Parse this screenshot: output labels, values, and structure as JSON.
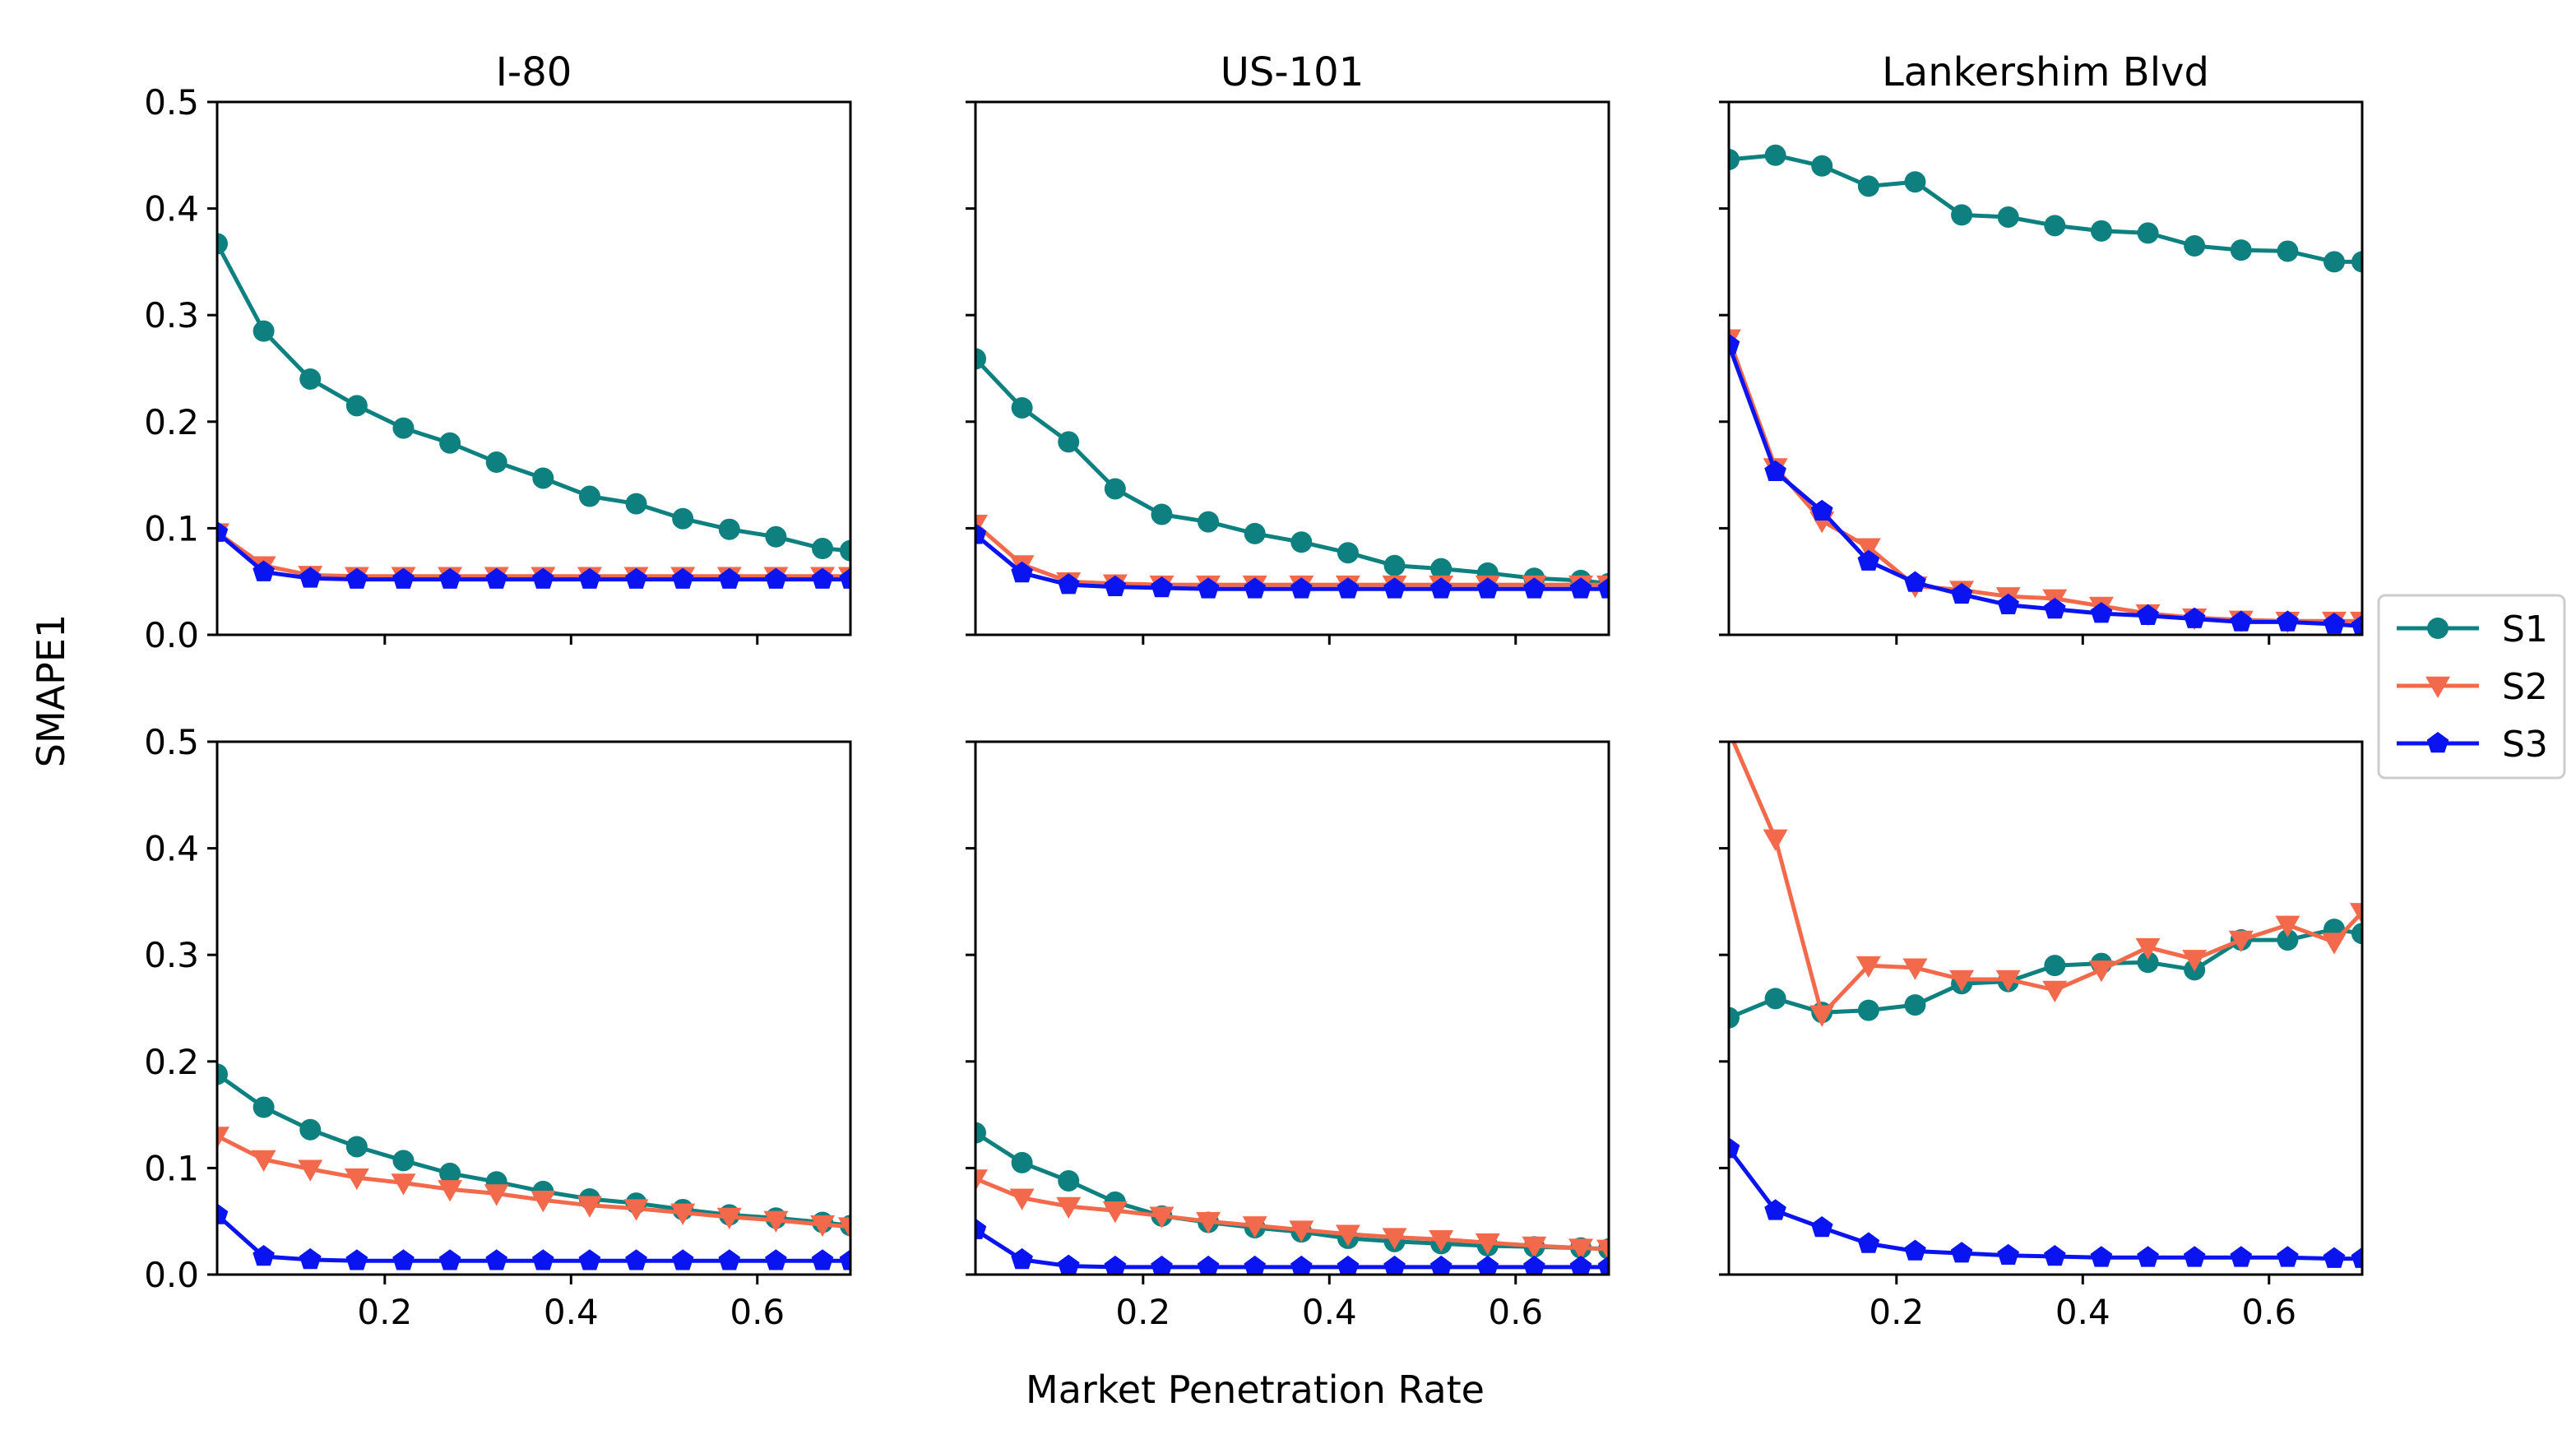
{
  "figure": {
    "ylabel": "SMAPE1",
    "xlabel": "Market Penetration Rate",
    "legend": {
      "placement": "right-center",
      "entries": [
        "S1",
        "S2",
        "S3"
      ]
    }
  },
  "colors": {
    "S1": "#0f8080",
    "S2": "#f26a4b",
    "S3": "#0a14f0"
  },
  "chart_data": [
    {
      "type": "line",
      "title": "I-80",
      "row": 0,
      "col": 0,
      "xlim": [
        0.02,
        0.7
      ],
      "ylim": [
        0,
        0.5
      ],
      "x": [
        0.02,
        0.07,
        0.12,
        0.17,
        0.22,
        0.27,
        0.32,
        0.37,
        0.42,
        0.47,
        0.52,
        0.57,
        0.62,
        0.67,
        0.7
      ],
      "series": [
        {
          "name": "S1",
          "values": [
            0.367,
            0.285,
            0.24,
            0.215,
            0.194,
            0.18,
            0.162,
            0.147,
            0.13,
            0.123,
            0.109,
            0.099,
            0.092,
            0.081,
            0.079
          ]
        },
        {
          "name": "S2",
          "values": [
            0.096,
            0.065,
            0.056,
            0.055,
            0.055,
            0.055,
            0.055,
            0.055,
            0.055,
            0.055,
            0.055,
            0.055,
            0.055,
            0.055,
            0.055
          ]
        },
        {
          "name": "S3",
          "values": [
            0.096,
            0.059,
            0.053,
            0.052,
            0.052,
            0.052,
            0.052,
            0.052,
            0.052,
            0.052,
            0.052,
            0.052,
            0.052,
            0.052,
            0.052
          ]
        }
      ]
    },
    {
      "type": "line",
      "title": "US-101",
      "row": 0,
      "col": 1,
      "xlim": [
        0.02,
        0.7
      ],
      "ylim": [
        0,
        0.5
      ],
      "x": [
        0.02,
        0.07,
        0.12,
        0.17,
        0.22,
        0.27,
        0.32,
        0.37,
        0.42,
        0.47,
        0.52,
        0.57,
        0.62,
        0.67,
        0.7
      ],
      "series": [
        {
          "name": "S1",
          "values": [
            0.259,
            0.213,
            0.181,
            0.137,
            0.113,
            0.106,
            0.095,
            0.087,
            0.077,
            0.065,
            0.062,
            0.058,
            0.053,
            0.051,
            0.048
          ]
        },
        {
          "name": "S2",
          "values": [
            0.104,
            0.066,
            0.05,
            0.048,
            0.047,
            0.047,
            0.047,
            0.047,
            0.047,
            0.047,
            0.047,
            0.047,
            0.047,
            0.047,
            0.047
          ]
        },
        {
          "name": "S3",
          "values": [
            0.094,
            0.058,
            0.047,
            0.045,
            0.044,
            0.043,
            0.043,
            0.043,
            0.043,
            0.043,
            0.043,
            0.043,
            0.043,
            0.043,
            0.043
          ]
        }
      ]
    },
    {
      "type": "line",
      "title": "Lankershim Blvd",
      "row": 0,
      "col": 2,
      "xlim": [
        0.02,
        0.7
      ],
      "ylim": [
        0,
        0.5
      ],
      "x": [
        0.02,
        0.07,
        0.12,
        0.17,
        0.22,
        0.27,
        0.32,
        0.37,
        0.42,
        0.47,
        0.52,
        0.57,
        0.62,
        0.67,
        0.7
      ],
      "series": [
        {
          "name": "S1",
          "values": [
            0.446,
            0.45,
            0.44,
            0.421,
            0.425,
            0.394,
            0.392,
            0.384,
            0.379,
            0.377,
            0.365,
            0.361,
            0.36,
            0.35,
            0.35
          ]
        },
        {
          "name": "S2",
          "values": [
            0.278,
            0.157,
            0.107,
            0.082,
            0.046,
            0.042,
            0.036,
            0.034,
            0.027,
            0.02,
            0.016,
            0.014,
            0.013,
            0.013,
            0.013
          ]
        },
        {
          "name": "S3",
          "values": [
            0.272,
            0.153,
            0.116,
            0.069,
            0.049,
            0.038,
            0.028,
            0.024,
            0.02,
            0.018,
            0.015,
            0.012,
            0.012,
            0.01,
            0.008
          ]
        }
      ]
    },
    {
      "type": "line",
      "title": "",
      "row": 1,
      "col": 0,
      "xlim": [
        0.02,
        0.7
      ],
      "ylim": [
        0,
        0.5
      ],
      "xticks": [
        "0.2",
        "0.4",
        "0.6"
      ],
      "x": [
        0.02,
        0.07,
        0.12,
        0.17,
        0.22,
        0.27,
        0.32,
        0.37,
        0.42,
        0.47,
        0.52,
        0.57,
        0.62,
        0.67,
        0.7
      ],
      "series": [
        {
          "name": "S1",
          "values": [
            0.188,
            0.157,
            0.136,
            0.12,
            0.107,
            0.095,
            0.087,
            0.078,
            0.071,
            0.067,
            0.061,
            0.056,
            0.053,
            0.049,
            0.046
          ]
        },
        {
          "name": "S2",
          "values": [
            0.13,
            0.108,
            0.099,
            0.091,
            0.086,
            0.08,
            0.076,
            0.07,
            0.065,
            0.062,
            0.058,
            0.054,
            0.051,
            0.047,
            0.045
          ]
        },
        {
          "name": "S3",
          "values": [
            0.056,
            0.017,
            0.014,
            0.013,
            0.013,
            0.013,
            0.013,
            0.013,
            0.013,
            0.013,
            0.013,
            0.013,
            0.013,
            0.013,
            0.013
          ]
        }
      ]
    },
    {
      "type": "line",
      "title": "",
      "row": 1,
      "col": 1,
      "xlim": [
        0.02,
        0.7
      ],
      "ylim": [
        0,
        0.5
      ],
      "xticks": [
        "0.2",
        "0.4",
        "0.6"
      ],
      "x": [
        0.02,
        0.07,
        0.12,
        0.17,
        0.22,
        0.27,
        0.32,
        0.37,
        0.42,
        0.47,
        0.52,
        0.57,
        0.62,
        0.67,
        0.7
      ],
      "series": [
        {
          "name": "S1",
          "values": [
            0.133,
            0.105,
            0.088,
            0.068,
            0.055,
            0.049,
            0.044,
            0.04,
            0.034,
            0.031,
            0.029,
            0.027,
            0.026,
            0.025,
            0.024
          ]
        },
        {
          "name": "S2",
          "values": [
            0.09,
            0.072,
            0.064,
            0.06,
            0.055,
            0.05,
            0.046,
            0.042,
            0.038,
            0.035,
            0.033,
            0.03,
            0.027,
            0.025,
            0.024
          ]
        },
        {
          "name": "S3",
          "values": [
            0.042,
            0.014,
            0.008,
            0.007,
            0.007,
            0.007,
            0.007,
            0.007,
            0.007,
            0.007,
            0.007,
            0.007,
            0.007,
            0.007,
            0.007
          ]
        }
      ]
    },
    {
      "type": "line",
      "title": "",
      "row": 1,
      "col": 2,
      "xlim": [
        0.02,
        0.7
      ],
      "ylim": [
        0,
        0.5
      ],
      "xticks": [
        "0.2",
        "0.4",
        "0.6"
      ],
      "x": [
        0.02,
        0.07,
        0.12,
        0.17,
        0.22,
        0.27,
        0.32,
        0.37,
        0.42,
        0.47,
        0.52,
        0.57,
        0.62,
        0.67,
        0.7
      ],
      "series": [
        {
          "name": "S1",
          "values": [
            0.241,
            0.259,
            0.246,
            0.248,
            0.253,
            0.273,
            0.275,
            0.29,
            0.292,
            0.293,
            0.286,
            0.314,
            0.314,
            0.324,
            0.32
          ]
        },
        {
          "name": "S2",
          "values": [
            0.51,
            0.409,
            0.244,
            0.29,
            0.288,
            0.277,
            0.277,
            0.267,
            0.286,
            0.307,
            0.296,
            0.314,
            0.328,
            0.312,
            0.34
          ]
        },
        {
          "name": "S3",
          "values": [
            0.118,
            0.06,
            0.044,
            0.029,
            0.022,
            0.02,
            0.018,
            0.017,
            0.016,
            0.016,
            0.016,
            0.016,
            0.016,
            0.015,
            0.015
          ]
        }
      ]
    }
  ],
  "yticks": [
    "0.0",
    "0.1",
    "0.2",
    "0.3",
    "0.4",
    "0.5"
  ],
  "ytick_values": [
    0,
    0.1,
    0.2,
    0.3,
    0.4,
    0.5
  ],
  "xtick_values": [
    0.2,
    0.4,
    0.6
  ]
}
